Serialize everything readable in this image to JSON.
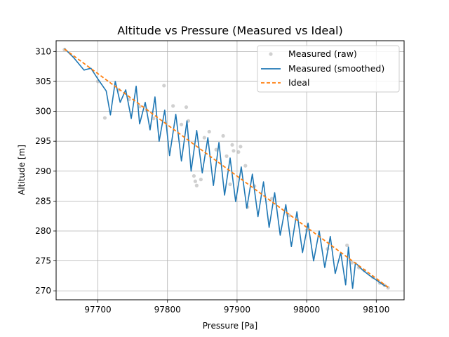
{
  "chart_data": {
    "type": "line",
    "title": "Altitude vs Pressure (Measured vs Ideal)",
    "xlabel": "Pressure [Pa]",
    "ylabel": "Altitude [m]",
    "xlim": [
      97640,
      98140
    ],
    "ylim": [
      268.5,
      311.8
    ],
    "xticks": [
      97700,
      97800,
      97900,
      98000,
      98100
    ],
    "yticks": [
      270,
      275,
      280,
      285,
      290,
      295,
      300,
      305,
      310
    ],
    "grid": true,
    "legend_position": "top-right",
    "series": [
      {
        "name": "Measured (raw)",
        "kind": "scatter",
        "color": "#aaaaaa",
        "points": [
          [
            97652,
            310.3
          ],
          [
            97700,
            305.0
          ],
          [
            97710,
            298.9
          ],
          [
            97730,
            303.6
          ],
          [
            97745,
            302.0
          ],
          [
            97760,
            300.8
          ],
          [
            97770,
            300.2
          ],
          [
            97780,
            298.8
          ],
          [
            97795,
            304.3
          ],
          [
            97808,
            300.9
          ],
          [
            97820,
            297.8
          ],
          [
            97827,
            300.7
          ],
          [
            97830,
            298.4
          ],
          [
            97838,
            289.2
          ],
          [
            97840,
            288.3
          ],
          [
            97842,
            287.6
          ],
          [
            97848,
            288.6
          ],
          [
            97853,
            295.6
          ],
          [
            97860,
            296.6
          ],
          [
            97870,
            293.6
          ],
          [
            97880,
            295.9
          ],
          [
            97885,
            292.5
          ],
          [
            97890,
            287.8
          ],
          [
            97893,
            294.4
          ],
          [
            97895,
            293.4
          ],
          [
            97902,
            293.2
          ],
          [
            97905,
            294.1
          ],
          [
            97912,
            290.9
          ],
          [
            97915,
            284.0
          ],
          [
            97925,
            287.5
          ],
          [
            97950,
            285.4
          ],
          [
            97975,
            282.6
          ],
          [
            98000,
            280.1
          ],
          [
            98030,
            277.0
          ],
          [
            98058,
            277.6
          ],
          [
            98065,
            274.7
          ],
          [
            98075,
            273.9
          ],
          [
            98083,
            273.4
          ],
          [
            98095,
            272.3
          ],
          [
            98105,
            271.3
          ],
          [
            98112,
            270.9
          ],
          [
            98117,
            270.5
          ]
        ]
      },
      {
        "name": "Measured (smoothed)",
        "kind": "line",
        "color": "#1f77b4",
        "points": [
          [
            97652,
            310.5
          ],
          [
            97665,
            309.0
          ],
          [
            97680,
            306.9
          ],
          [
            97690,
            307.2
          ],
          [
            97700,
            305.4
          ],
          [
            97712,
            303.4
          ],
          [
            97718,
            299.4
          ],
          [
            97725,
            305.0
          ],
          [
            97732,
            301.5
          ],
          [
            97740,
            303.6
          ],
          [
            97748,
            298.8
          ],
          [
            97755,
            304.2
          ],
          [
            97760,
            297.9
          ],
          [
            97768,
            301.5
          ],
          [
            97775,
            296.9
          ],
          [
            97782,
            302.4
          ],
          [
            97788,
            295.0
          ],
          [
            97796,
            300.2
          ],
          [
            97803,
            292.6
          ],
          [
            97812,
            299.5
          ],
          [
            97820,
            291.7
          ],
          [
            97828,
            298.4
          ],
          [
            97834,
            290.0
          ],
          [
            97842,
            296.8
          ],
          [
            97850,
            289.7
          ],
          [
            97858,
            295.6
          ],
          [
            97866,
            287.6
          ],
          [
            97874,
            294.8
          ],
          [
            97882,
            286.0
          ],
          [
            97890,
            292.2
          ],
          [
            97898,
            284.9
          ],
          [
            97906,
            290.7
          ],
          [
            97914,
            283.8
          ],
          [
            97922,
            289.5
          ],
          [
            97930,
            282.4
          ],
          [
            97938,
            288.2
          ],
          [
            97946,
            280.6
          ],
          [
            97954,
            286.4
          ],
          [
            97962,
            279.3
          ],
          [
            97970,
            284.4
          ],
          [
            97978,
            277.4
          ],
          [
            97986,
            283.2
          ],
          [
            97994,
            276.4
          ],
          [
            98002,
            281.3
          ],
          [
            98010,
            275.0
          ],
          [
            98018,
            280.0
          ],
          [
            98026,
            273.9
          ],
          [
            98034,
            279.1
          ],
          [
            98041,
            272.9
          ],
          [
            98049,
            276.4
          ],
          [
            98056,
            271.0
          ],
          [
            98060,
            277.3
          ],
          [
            98066,
            270.4
          ],
          [
            98070,
            274.7
          ],
          [
            98080,
            273.5
          ],
          [
            98090,
            272.6
          ],
          [
            98100,
            271.8
          ],
          [
            98110,
            271.0
          ],
          [
            98117,
            270.6
          ]
        ]
      },
      {
        "name": "Ideal",
        "kind": "dashed",
        "color": "#ff7f0e",
        "points": [
          [
            97652,
            310.4
          ],
          [
            98117,
            270.6
          ]
        ]
      }
    ]
  }
}
